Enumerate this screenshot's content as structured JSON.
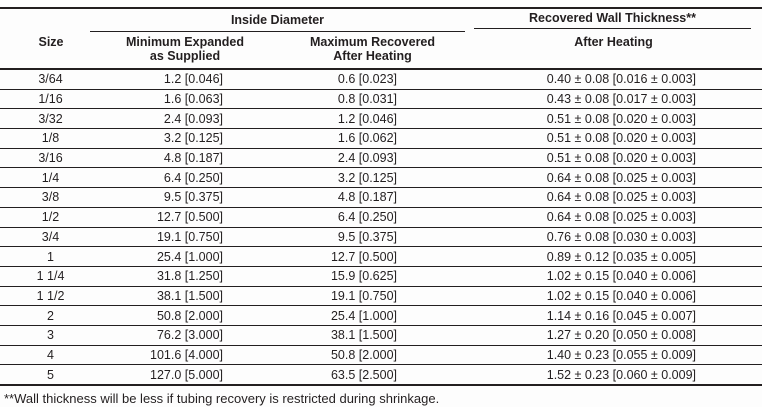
{
  "table": {
    "group_headers": {
      "inside_diameter": "Inside Diameter",
      "recovered_wall_thickness": "Recovered Wall Thickness**"
    },
    "columns": {
      "size": "Size",
      "min_expanded_line1": "Minimum Expanded",
      "min_expanded_line2": "as Supplied",
      "max_recovered_line1": "Maximum Recovered",
      "max_recovered_line2": "After Heating",
      "wall_after_heating": "After Heating"
    },
    "rows": [
      {
        "size": "3/64",
        "min_expanded": "1.2 [0.046]",
        "max_recovered": "0.6 [0.023]",
        "wall_thickness": "0.40 ± 0.08 [0.016 ± 0.003]"
      },
      {
        "size": "1/16",
        "min_expanded": "1.6 [0.063]",
        "max_recovered": "0.8 [0.031]",
        "wall_thickness": "0.43 ± 0.08 [0.017 ± 0.003]"
      },
      {
        "size": "3/32",
        "min_expanded": "2.4 [0.093]",
        "max_recovered": "1.2 [0.046]",
        "wall_thickness": "0.51 ± 0.08 [0.020 ± 0.003]"
      },
      {
        "size": "1/8",
        "min_expanded": "3.2 [0.125]",
        "max_recovered": "1.6 [0.062]",
        "wall_thickness": "0.51 ± 0.08 [0.020 ± 0.003]"
      },
      {
        "size": "3/16",
        "min_expanded": "4.8 [0.187]",
        "max_recovered": "2.4 [0.093]",
        "wall_thickness": "0.51 ± 0.08 [0.020 ± 0.003]"
      },
      {
        "size": "1/4",
        "min_expanded": "6.4 [0.250]",
        "max_recovered": "3.2 [0.125]",
        "wall_thickness": "0.64 ± 0.08 [0.025 ± 0.003]"
      },
      {
        "size": "3/8",
        "min_expanded": "9.5 [0.375]",
        "max_recovered": "4.8 [0.187]",
        "wall_thickness": "0.64 ± 0.08 [0.025 ± 0.003]"
      },
      {
        "size": "1/2",
        "min_expanded": "12.7 [0.500]",
        "max_recovered": "6.4 [0.250]",
        "wall_thickness": "0.64 ± 0.08 [0.025 ± 0.003]"
      },
      {
        "size": "3/4",
        "min_expanded": "19.1 [0.750]",
        "max_recovered": "9.5 [0.375]",
        "wall_thickness": "0.76 ± 0.08 [0.030 ± 0.003]"
      },
      {
        "size": "1",
        "min_expanded": "25.4 [1.000]",
        "max_recovered": "12.7 [0.500]",
        "wall_thickness": "0.89 ± 0.12 [0.035 ± 0.005]"
      },
      {
        "size": "1 1/4",
        "min_expanded": "31.8 [1.250]",
        "max_recovered": "15.9 [0.625]",
        "wall_thickness": "1.02 ± 0.15 [0.040 ± 0.006]"
      },
      {
        "size": "1 1/2",
        "min_expanded": "38.1 [1.500]",
        "max_recovered": "19.1 [0.750]",
        "wall_thickness": "1.02 ± 0.15 [0.040 ± 0.006]"
      },
      {
        "size": "2",
        "min_expanded": "50.8 [2.000]",
        "max_recovered": "25.4 [1.000]",
        "wall_thickness": "1.14 ± 0.16 [0.045 ± 0.007]"
      },
      {
        "size": "3",
        "min_expanded": "76.2 [3.000]",
        "max_recovered": "38.1 [1.500]",
        "wall_thickness": "1.27 ± 0.20 [0.050 ± 0.008]"
      },
      {
        "size": "4",
        "min_expanded": "101.6 [4.000]",
        "max_recovered": "50.8 [2.000]",
        "wall_thickness": "1.40 ± 0.23 [0.055 ± 0.009]"
      },
      {
        "size": "5",
        "min_expanded": "127.0 [5.000]",
        "max_recovered": "63.5 [2.500]",
        "wall_thickness": "1.52 ± 0.23 [0.060 ± 0.009]"
      }
    ],
    "footnote": "**Wall thickness will be less if tubing recovery is restricted during shrinkage."
  },
  "colors": {
    "text": "#231f20",
    "rule": "#231f20",
    "background": "#fdfdfd"
  }
}
